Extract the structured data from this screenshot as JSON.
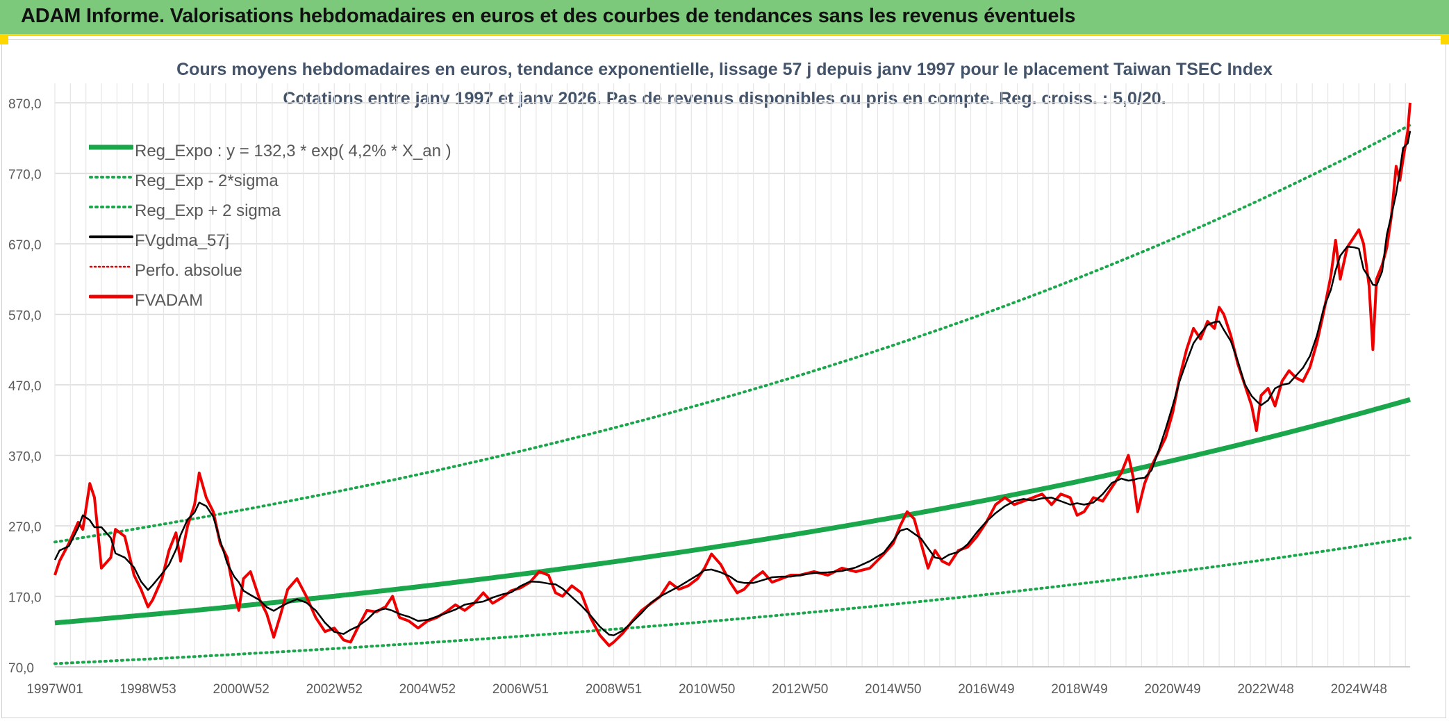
{
  "header": {
    "title": "ADAM Informe. Valorisations hebdomadaires en euros et des courbes de tendances sans les revenus éventuels"
  },
  "chart_data": {
    "type": "line",
    "title": "Cours moyens hebdomadaires en euros, tendance exponentielle, lissage 57 j depuis janv 1997 pour le placement Taiwan TSEC Index",
    "subtitle": "Cotations entre janv 1997 et janv 2026. Pas de revenus disponibles ou pris en compte. Reg. croiss. : 5,0/20.",
    "xlabel": "",
    "ylabel": "",
    "x_range": [
      1997.0,
      2026.1
    ],
    "ylim": [
      70,
      890
    ],
    "y_ticks": [
      70,
      170,
      270,
      370,
      470,
      570,
      670,
      770,
      870
    ],
    "y_tick_labels": [
      "70,0",
      "170,0",
      "270,0",
      "370,0",
      "470,0",
      "570,0",
      "670,0",
      "770,0",
      "870,0"
    ],
    "x_tick_labels": [
      {
        "label": "1997W01",
        "x": 1997.0
      },
      {
        "label": "1998W53",
        "x": 1999.0
      },
      {
        "label": "2000W52",
        "x": 2001.0
      },
      {
        "label": "2002W52",
        "x": 2003.0
      },
      {
        "label": "2004W52",
        "x": 2005.0
      },
      {
        "label": "2006W51",
        "x": 2007.0
      },
      {
        "label": "2008W51",
        "x": 2009.0
      },
      {
        "label": "2010W50",
        "x": 2011.0
      },
      {
        "label": "2012W50",
        "x": 2013.0
      },
      {
        "label": "2014W50",
        "x": 2015.0
      },
      {
        "label": "2016W49",
        "x": 2017.0
      },
      {
        "label": "2018W49",
        "x": 2019.0
      },
      {
        "label": "2020W49",
        "x": 2021.0
      },
      {
        "label": "2022W48",
        "x": 2023.0
      },
      {
        "label": "2024W48",
        "x": 2025.0
      }
    ],
    "grid": true,
    "legend_position": "top-left",
    "series": [
      {
        "name": "Reg_Expo : y = 132,3 * exp( 4,2% *  X_an )",
        "style": "solid-thick",
        "color": "#1aa64b",
        "formula": {
          "a": 132.3,
          "rate": 0.042
        }
      },
      {
        "name": "Reg_Exp - 2*sigma",
        "style": "dotted",
        "color": "#1aa64b",
        "formula": {
          "a": 74.5,
          "rate": 0.042
        }
      },
      {
        "name": "Reg_Exp + 2 sigma",
        "style": "dotted",
        "color": "#1aa64b",
        "formula": {
          "a": 247.0,
          "rate": 0.042
        }
      },
      {
        "name": "FVgdma_57j",
        "style": "solid",
        "color": "#000000",
        "smoothed_of": "FVADAM"
      },
      {
        "name": "Perfo. absolue",
        "style": "dotted",
        "color": "#e00000",
        "same_as": "FVADAM"
      },
      {
        "name": "FVADAM",
        "style": "solid-thick",
        "color": "#ee0000",
        "points": [
          [
            1997.0,
            200
          ],
          [
            1997.1,
            220
          ],
          [
            1997.3,
            245
          ],
          [
            1997.5,
            275
          ],
          [
            1997.6,
            265
          ],
          [
            1997.75,
            330
          ],
          [
            1997.85,
            310
          ],
          [
            1998.0,
            210
          ],
          [
            1998.2,
            225
          ],
          [
            1998.3,
            265
          ],
          [
            1998.5,
            255
          ],
          [
            1998.7,
            200
          ],
          [
            1998.85,
            180
          ],
          [
            1999.0,
            155
          ],
          [
            1999.1,
            165
          ],
          [
            1999.3,
            195
          ],
          [
            1999.45,
            235
          ],
          [
            1999.6,
            260
          ],
          [
            1999.7,
            220
          ],
          [
            1999.85,
            270
          ],
          [
            2000.0,
            300
          ],
          [
            2000.1,
            345
          ],
          [
            2000.25,
            310
          ],
          [
            2000.4,
            290
          ],
          [
            2000.55,
            245
          ],
          [
            2000.7,
            225
          ],
          [
            2000.85,
            175
          ],
          [
            2000.95,
            150
          ],
          [
            2001.05,
            195
          ],
          [
            2001.2,
            205
          ],
          [
            2001.4,
            165
          ],
          [
            2001.55,
            145
          ],
          [
            2001.7,
            112
          ],
          [
            2001.85,
            145
          ],
          [
            2002.0,
            180
          ],
          [
            2002.2,
            195
          ],
          [
            2002.4,
            170
          ],
          [
            2002.6,
            140
          ],
          [
            2002.8,
            120
          ],
          [
            2003.0,
            125
          ],
          [
            2003.2,
            108
          ],
          [
            2003.35,
            105
          ],
          [
            2003.5,
            125
          ],
          [
            2003.7,
            150
          ],
          [
            2003.9,
            148
          ],
          [
            2004.1,
            155
          ],
          [
            2004.25,
            170
          ],
          [
            2004.4,
            140
          ],
          [
            2004.6,
            135
          ],
          [
            2004.8,
            125
          ],
          [
            2005.0,
            135
          ],
          [
            2005.2,
            140
          ],
          [
            2005.4,
            148
          ],
          [
            2005.6,
            158
          ],
          [
            2005.8,
            150
          ],
          [
            2006.0,
            160
          ],
          [
            2006.2,
            175
          ],
          [
            2006.4,
            160
          ],
          [
            2006.6,
            168
          ],
          [
            2006.8,
            178
          ],
          [
            2007.0,
            182
          ],
          [
            2007.2,
            190
          ],
          [
            2007.4,
            205
          ],
          [
            2007.6,
            200
          ],
          [
            2007.75,
            175
          ],
          [
            2007.9,
            170
          ],
          [
            2008.1,
            185
          ],
          [
            2008.3,
            175
          ],
          [
            2008.5,
            140
          ],
          [
            2008.7,
            115
          ],
          [
            2008.9,
            100
          ],
          [
            2009.0,
            105
          ],
          [
            2009.2,
            118
          ],
          [
            2009.4,
            135
          ],
          [
            2009.6,
            150
          ],
          [
            2009.8,
            160
          ],
          [
            2010.0,
            170
          ],
          [
            2010.2,
            190
          ],
          [
            2010.4,
            180
          ],
          [
            2010.6,
            185
          ],
          [
            2010.8,
            195
          ],
          [
            2010.95,
            210
          ],
          [
            2011.1,
            230
          ],
          [
            2011.3,
            215
          ],
          [
            2011.5,
            190
          ],
          [
            2011.65,
            175
          ],
          [
            2011.8,
            180
          ],
          [
            2012.0,
            195
          ],
          [
            2012.2,
            205
          ],
          [
            2012.4,
            190
          ],
          [
            2012.6,
            195
          ],
          [
            2012.8,
            200
          ],
          [
            2013.0,
            200
          ],
          [
            2013.3,
            205
          ],
          [
            2013.6,
            200
          ],
          [
            2013.9,
            210
          ],
          [
            2014.2,
            205
          ],
          [
            2014.5,
            210
          ],
          [
            2014.8,
            230
          ],
          [
            2015.0,
            245
          ],
          [
            2015.15,
            270
          ],
          [
            2015.3,
            290
          ],
          [
            2015.45,
            280
          ],
          [
            2015.6,
            245
          ],
          [
            2015.75,
            210
          ],
          [
            2015.9,
            235
          ],
          [
            2016.05,
            220
          ],
          [
            2016.2,
            215
          ],
          [
            2016.4,
            235
          ],
          [
            2016.6,
            240
          ],
          [
            2016.8,
            255
          ],
          [
            2017.0,
            275
          ],
          [
            2017.2,
            300
          ],
          [
            2017.4,
            310
          ],
          [
            2017.6,
            300
          ],
          [
            2017.8,
            305
          ],
          [
            2018.0,
            310
          ],
          [
            2018.2,
            315
          ],
          [
            2018.4,
            300
          ],
          [
            2018.6,
            315
          ],
          [
            2018.8,
            310
          ],
          [
            2018.95,
            285
          ],
          [
            2019.1,
            290
          ],
          [
            2019.3,
            310
          ],
          [
            2019.5,
            305
          ],
          [
            2019.7,
            325
          ],
          [
            2019.9,
            345
          ],
          [
            2020.05,
            370
          ],
          [
            2020.15,
            340
          ],
          [
            2020.25,
            290
          ],
          [
            2020.4,
            330
          ],
          [
            2020.55,
            355
          ],
          [
            2020.7,
            375
          ],
          [
            2020.85,
            395
          ],
          [
            2021.0,
            430
          ],
          [
            2021.15,
            480
          ],
          [
            2021.3,
            520
          ],
          [
            2021.45,
            550
          ],
          [
            2021.6,
            535
          ],
          [
            2021.75,
            560
          ],
          [
            2021.9,
            550
          ],
          [
            2022.0,
            580
          ],
          [
            2022.1,
            570
          ],
          [
            2022.25,
            540
          ],
          [
            2022.4,
            500
          ],
          [
            2022.55,
            470
          ],
          [
            2022.7,
            440
          ],
          [
            2022.8,
            405
          ],
          [
            2022.9,
            455
          ],
          [
            2023.05,
            465
          ],
          [
            2023.2,
            440
          ],
          [
            2023.35,
            475
          ],
          [
            2023.5,
            490
          ],
          [
            2023.65,
            480
          ],
          [
            2023.8,
            475
          ],
          [
            2023.95,
            495
          ],
          [
            2024.1,
            530
          ],
          [
            2024.25,
            575
          ],
          [
            2024.4,
            625
          ],
          [
            2024.5,
            675
          ],
          [
            2024.6,
            620
          ],
          [
            2024.75,
            665
          ],
          [
            2024.9,
            680
          ],
          [
            2025.0,
            690
          ],
          [
            2025.1,
            670
          ],
          [
            2025.22,
            610
          ],
          [
            2025.3,
            520
          ],
          [
            2025.38,
            620
          ],
          [
            2025.5,
            640
          ],
          [
            2025.6,
            665
          ],
          [
            2025.7,
            710
          ],
          [
            2025.8,
            780
          ],
          [
            2025.88,
            760
          ],
          [
            2025.95,
            790
          ],
          [
            2026.05,
            830
          ],
          [
            2026.1,
            870
          ]
        ]
      }
    ]
  }
}
